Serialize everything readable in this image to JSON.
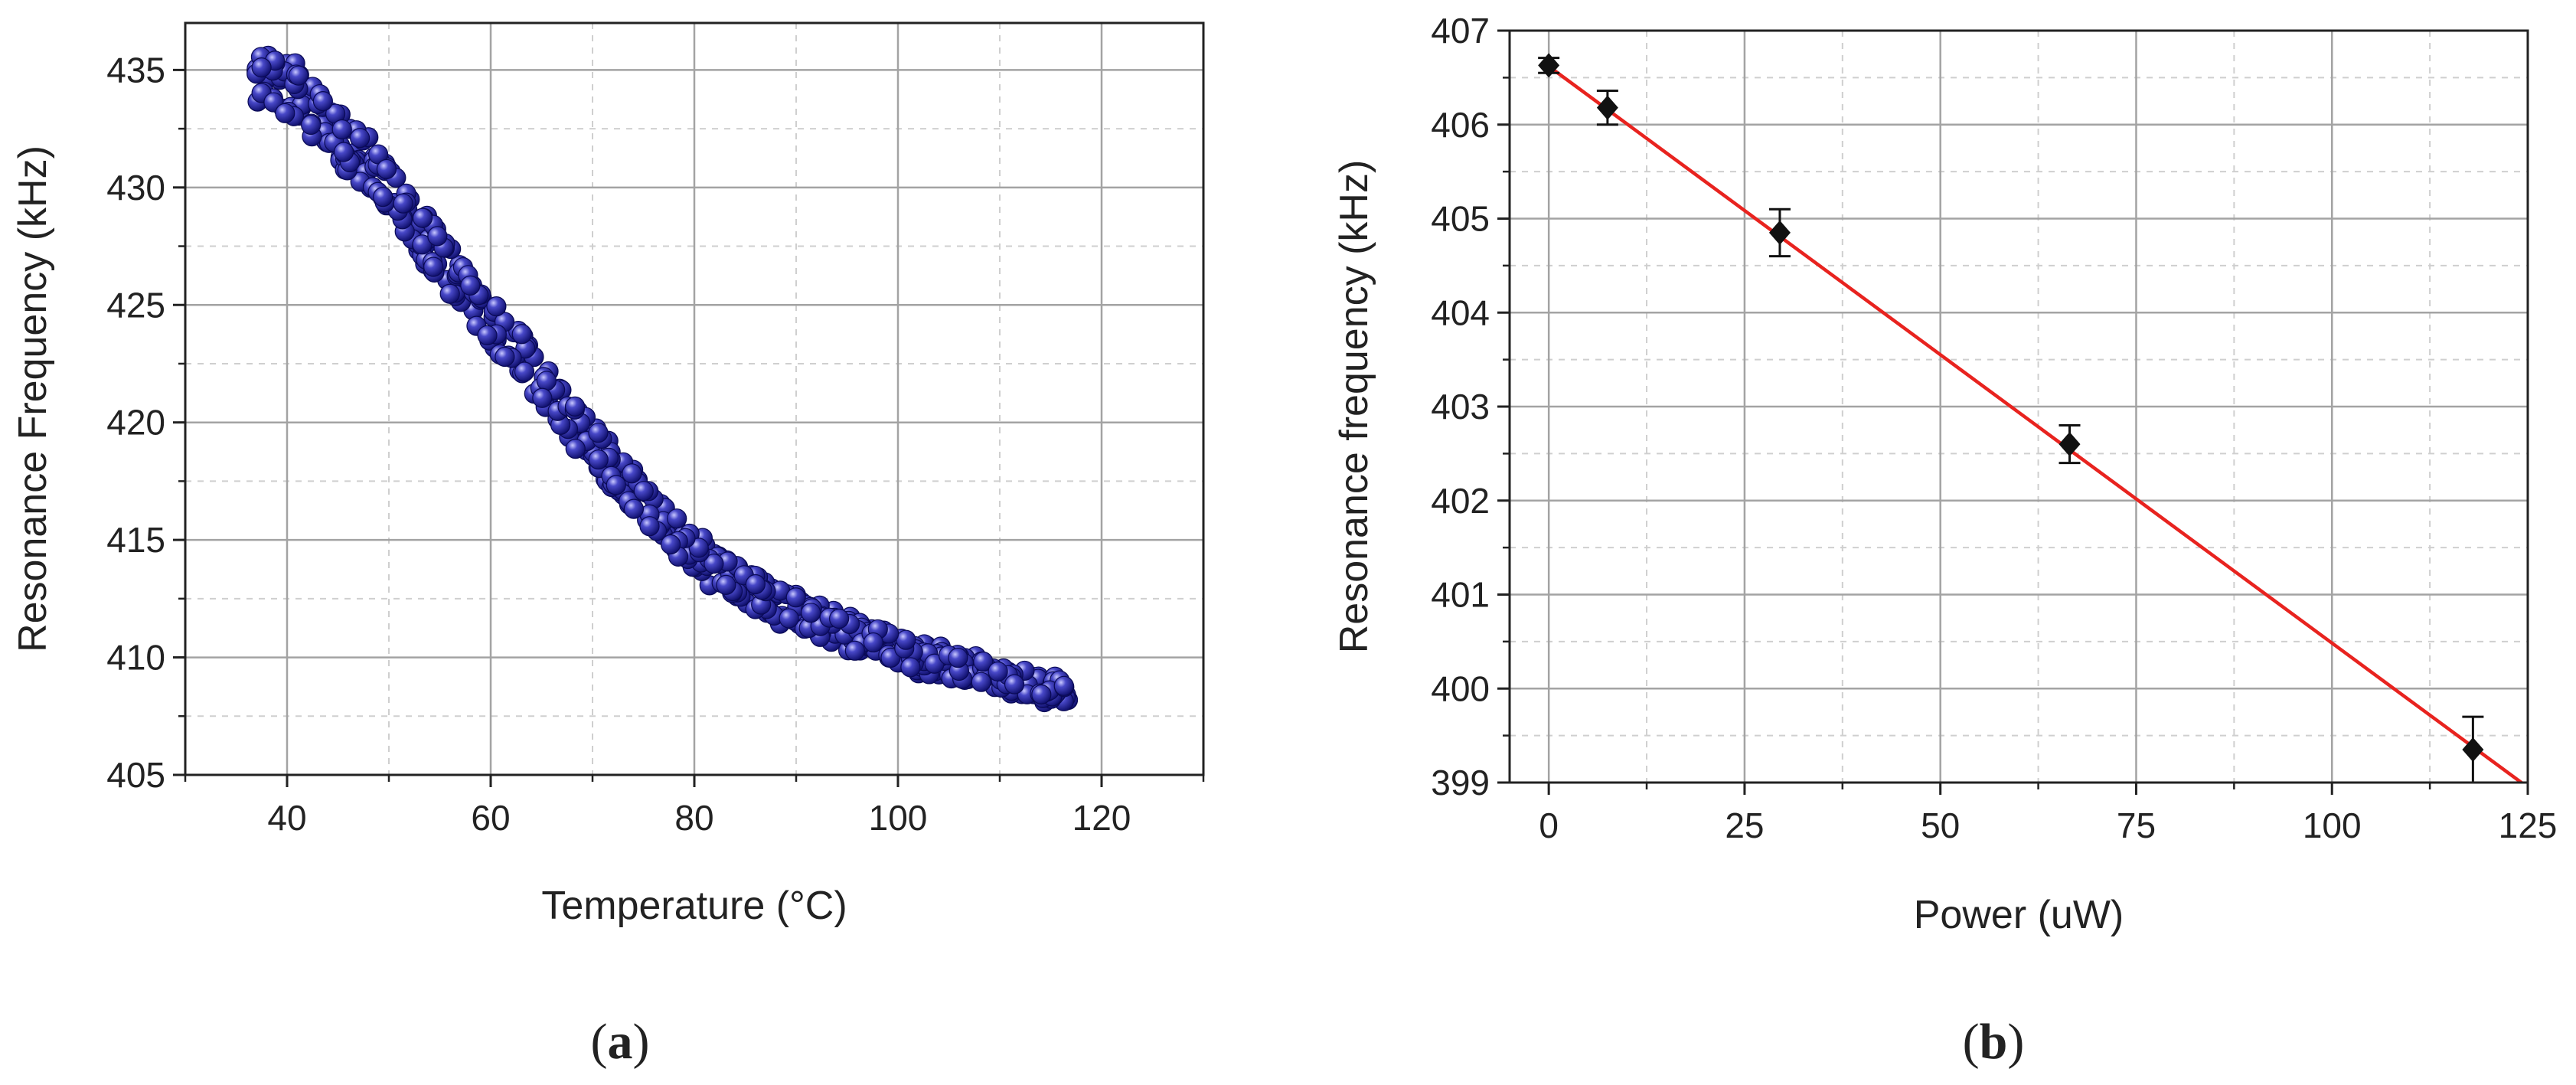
{
  "panels": [
    {
      "label_open": "(",
      "label_letter": "a",
      "label_close": ")",
      "chart_data": {
        "type": "scatter",
        "xlabel": "Temperature (°C)",
        "ylabel": "Resonance Frequency (kHz)",
        "xlim": [
          30,
          130
        ],
        "ylim": [
          405,
          437
        ],
        "x_ticks": [
          40,
          60,
          80,
          100,
          120
        ],
        "y_ticks": [
          405,
          410,
          415,
          420,
          425,
          430,
          435
        ],
        "grid": true,
        "marker_color": "#1c1c8c",
        "curve": {
          "x": [
            37,
            40,
            43,
            46,
            50,
            54,
            58,
            62,
            66,
            70,
            74,
            78,
            82,
            86,
            90,
            94,
            98,
            102,
            106,
            110,
            114,
            117
          ],
          "y": [
            434.5,
            434.2,
            433.2,
            431.8,
            430.0,
            427.5,
            425.3,
            423.3,
            421.1,
            419.0,
            417.1,
            415.2,
            413.8,
            412.7,
            411.9,
            411.2,
            410.6,
            410.0,
            409.6,
            409.1,
            408.7,
            408.6
          ]
        }
      }
    },
    {
      "label_open": "(",
      "label_letter": "b",
      "label_close": ")",
      "chart_data": {
        "type": "scatter",
        "xlabel": "Power (uW)",
        "ylabel": "Resonance frequency (kHz)",
        "xlim": [
          -5,
          125
        ],
        "ylim": [
          399,
          407
        ],
        "x_ticks": [
          0,
          25,
          50,
          75,
          100,
          125
        ],
        "y_ticks": [
          399,
          400,
          401,
          402,
          403,
          404,
          405,
          406,
          407
        ],
        "grid": true,
        "points": [
          {
            "x": 0,
            "y": 406.63,
            "err": 0.08
          },
          {
            "x": 7.5,
            "y": 406.18,
            "err": 0.18
          },
          {
            "x": 29.5,
            "y": 404.85,
            "err": 0.25
          },
          {
            "x": 66.5,
            "y": 402.6,
            "err": 0.2
          },
          {
            "x": 118,
            "y": 399.35,
            "err": 0.35
          }
        ],
        "fit_line": {
          "x": [
            0,
            125
          ],
          "y": [
            406.62,
            398.95
          ]
        },
        "marker_color": "#111111",
        "fit_color": "#e8231f"
      }
    }
  ]
}
